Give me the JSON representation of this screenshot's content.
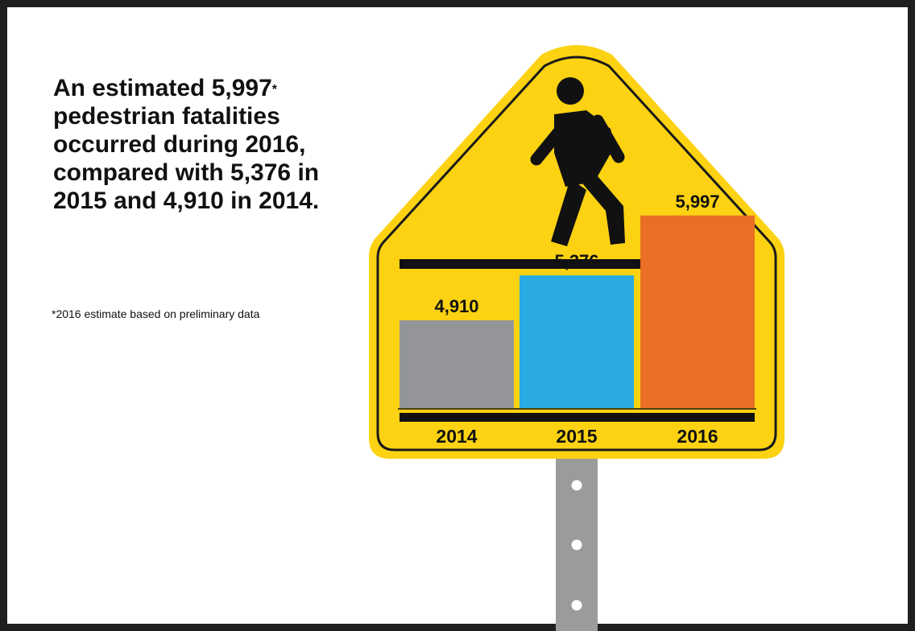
{
  "headline": {
    "part1": "An estimated 5,997",
    "asterisk": "*",
    "part2": " pedestrian fatalities occurred during 2016, compared with 5,376 in 2015 and 4,910 in 2014."
  },
  "footnote": "*2016 estimate based on preliminary data",
  "colors": {
    "sign_yellow": "#fcd212",
    "sign_border": "#1a1a1a",
    "post": "#9b9b9b"
  },
  "chart_data": {
    "type": "bar",
    "categories": [
      "2014",
      "2015",
      "2016"
    ],
    "values": [
      4910,
      5376,
      5997
    ],
    "value_labels": [
      "4,910",
      "5,376",
      "5,997"
    ],
    "colors": [
      "#939598",
      "#29aae1",
      "#e86f24"
    ],
    "title": "",
    "xlabel": "",
    "ylabel": "",
    "grid": false,
    "legend": "none"
  }
}
